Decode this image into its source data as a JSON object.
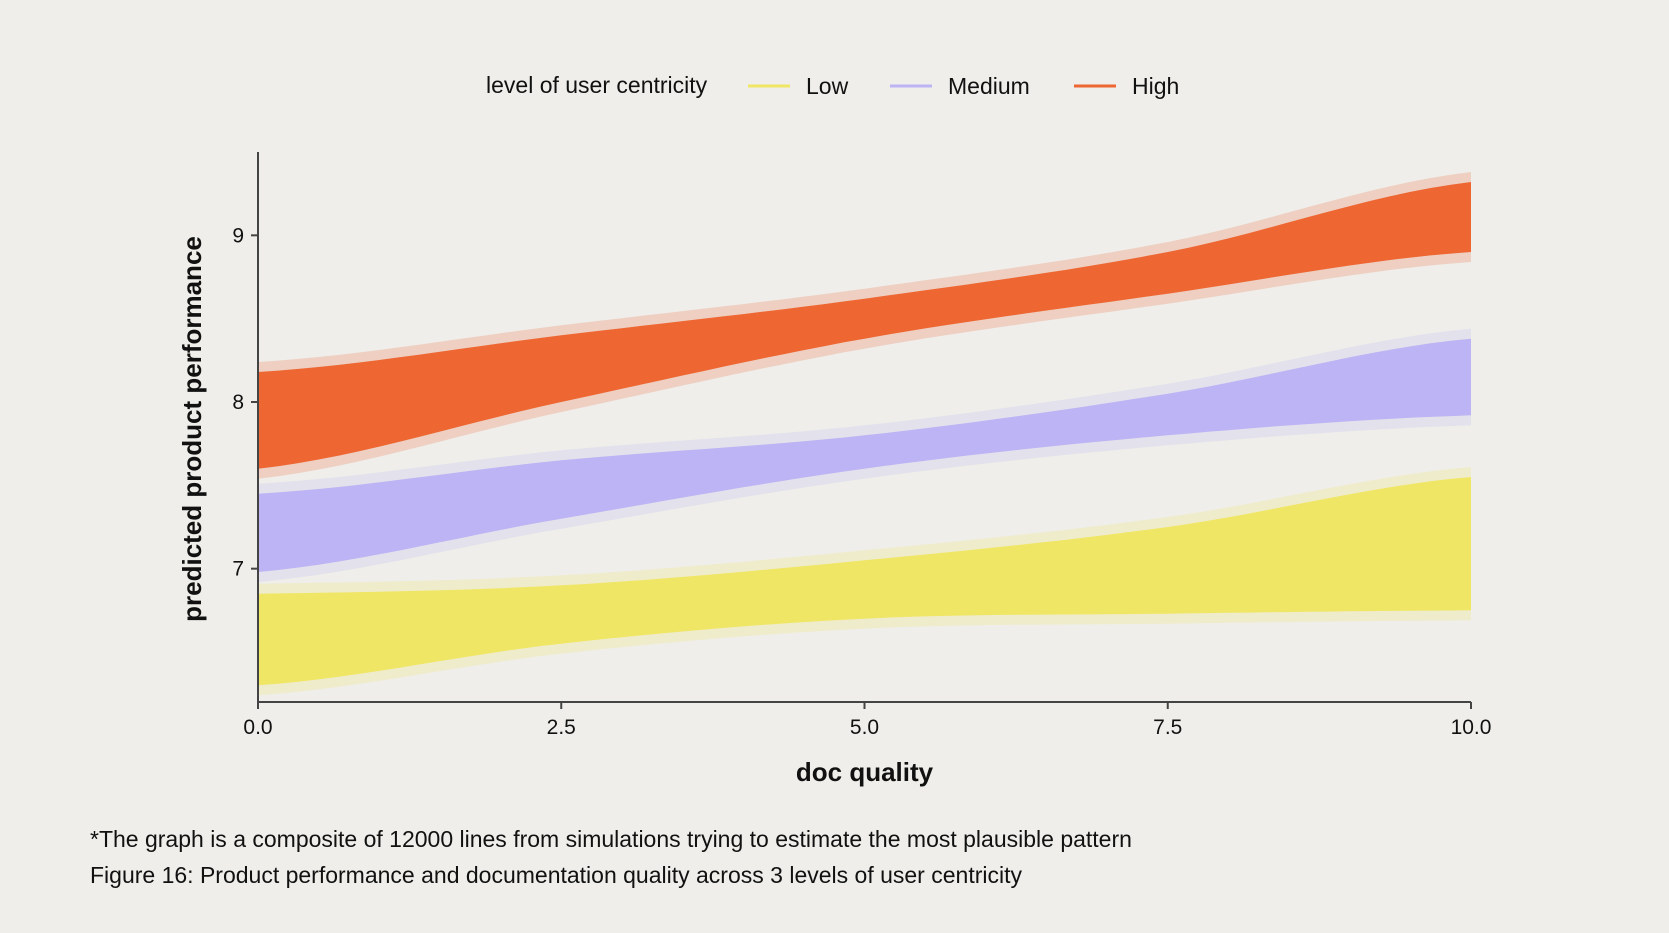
{
  "chart_data": {
    "type": "line",
    "title": "",
    "xlabel": "doc quality",
    "ylabel": "predicted product performance",
    "xlim": [
      0,
      10
    ],
    "ylim": [
      6.2,
      9.5
    ],
    "x_ticks": [
      "0.0",
      "2.5",
      "5.0",
      "7.5",
      "10.0"
    ],
    "y_ticks": [
      "7",
      "8",
      "9"
    ],
    "grid": false,
    "legend_position": "top-center",
    "legend_title": "level of user centricity",
    "series": [
      {
        "name": "Low",
        "color": "#f0e665",
        "x": [
          0,
          2.5,
          5,
          7.5,
          10
        ],
        "lower": [
          6.3,
          6.55,
          6.7,
          6.73,
          6.75
        ],
        "upper": [
          6.85,
          6.9,
          7.05,
          7.25,
          7.55
        ]
      },
      {
        "name": "Medium",
        "color": "#bcb4f4",
        "x": [
          0,
          2.5,
          5,
          7.5,
          10
        ],
        "lower": [
          6.98,
          7.3,
          7.6,
          7.8,
          7.92
        ],
        "upper": [
          7.45,
          7.65,
          7.8,
          8.05,
          8.38
        ]
      },
      {
        "name": "High",
        "color": "#ee6632",
        "x": [
          0,
          2.5,
          5,
          7.5,
          10
        ],
        "lower": [
          7.6,
          8.0,
          8.38,
          8.65,
          8.9
        ],
        "upper": [
          8.18,
          8.4,
          8.62,
          8.9,
          9.32
        ]
      }
    ]
  },
  "notes": {
    "composite_note": "*The graph is a composite of 12000 lines from simulations trying to estimate the most plausible pattern",
    "figure_caption": "Figure 16: Product performance and documentation quality across 3 levels of user centricity"
  }
}
